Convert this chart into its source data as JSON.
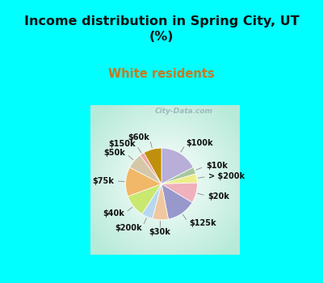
{
  "title": "Income distribution in Spring City, UT\n(%)",
  "subtitle": "White residents",
  "title_color": "#111111",
  "subtitle_color": "#c87820",
  "bg_cyan": "#00ffff",
  "labels": [
    "$100k",
    "$10k",
    "> $200k",
    "$20k",
    "$125k",
    "$30k",
    "$200k",
    "$40k",
    "$75k",
    "$50k",
    "$150k",
    "$60k"
  ],
  "sizes": [
    17,
    3,
    4,
    9,
    13,
    7,
    5,
    10,
    13,
    7,
    2,
    8
  ],
  "colors": [
    "#b8aed8",
    "#a8c8a0",
    "#eeee88",
    "#f0b0bc",
    "#9898cc",
    "#f0c8a0",
    "#b8d8f0",
    "#c8e870",
    "#f0b868",
    "#d4c8a8",
    "#f0a8a0",
    "#c0900c"
  ],
  "watermark": "City-Data.com",
  "figsize": [
    4.0,
    3.5
  ],
  "dpi": 100,
  "title_fontsize": 11.5,
  "subtitle_fontsize": 10.5,
  "label_fontsize": 7.0
}
